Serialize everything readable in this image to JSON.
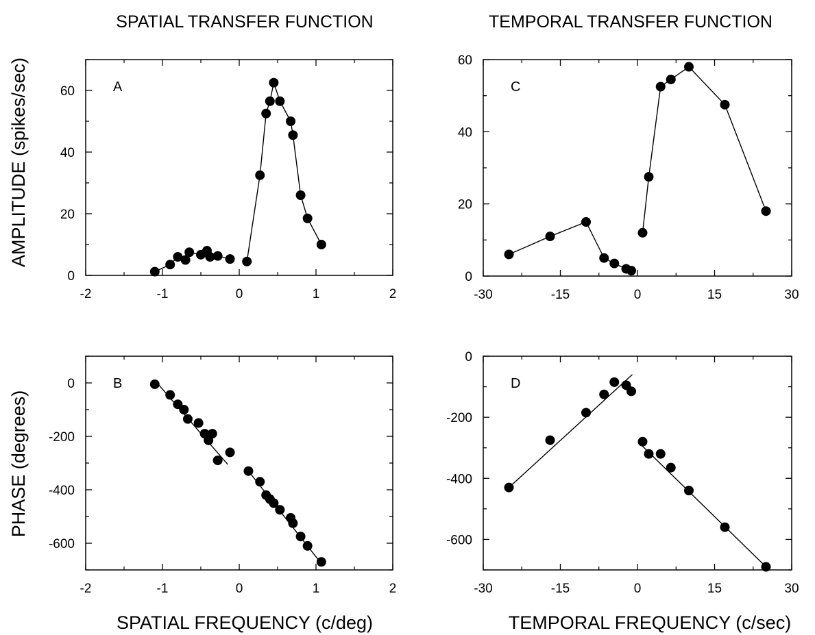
{
  "titles": {
    "spatial": "SPATIAL TRANSFER FUNCTION",
    "temporal": "TEMPORAL TRANSFER FUNCTION"
  },
  "axis_labels": {
    "amplitude": "AMPLITUDE (spikes/sec)",
    "phase": "PHASE (degrees)",
    "spatial_frequency": "SPATIAL FREQUENCY (c/deg)",
    "temporal_frequency": "TEMPORAL FREQUENCY (c/sec)"
  },
  "chart_data": [
    {
      "panel": "A",
      "type": "line",
      "title": "SPATIAL TRANSFER FUNCTION",
      "xlabel": "",
      "ylabel": "AMPLITUDE (spikes/sec)",
      "xlim": [
        -2,
        2
      ],
      "ylim": [
        0,
        70
      ],
      "xticks": [
        -2,
        -1,
        0,
        1,
        2
      ],
      "yticks": [
        0,
        20,
        40,
        60
      ],
      "series": [
        {
          "x": [
            -1.1,
            -0.9,
            -0.8,
            -0.7,
            -0.65,
            -0.5,
            -0.42,
            -0.38,
            -0.28,
            -0.12
          ],
          "y": [
            1.2,
            3.5,
            6.0,
            5.0,
            7.5,
            6.7,
            8.0,
            6.0,
            6.3,
            5.3
          ]
        },
        {
          "x": [
            0.1,
            0.27,
            0.35,
            0.4,
            0.45,
            0.53,
            0.67,
            0.7,
            0.8,
            0.89,
            1.07
          ],
          "y": [
            4.5,
            32.5,
            52.5,
            56.5,
            62.5,
            56.5,
            50.0,
            45.5,
            26.0,
            18.5,
            10.0
          ]
        }
      ]
    },
    {
      "panel": "B",
      "type": "scatter",
      "title": "",
      "xlabel": "SPATIAL FREQUENCY (c/deg)",
      "ylabel": "PHASE (degrees)",
      "xlim": [
        -2,
        2
      ],
      "ylim": [
        -700,
        100
      ],
      "xticks": [
        -2,
        -1,
        0,
        1,
        2
      ],
      "yticks": [
        0,
        -200,
        -400,
        -600
      ],
      "points": {
        "x": [
          -1.1,
          -0.9,
          -0.8,
          -0.72,
          -0.67,
          -0.53,
          -0.45,
          -0.4,
          -0.35,
          -0.28,
          -0.12,
          0.12,
          0.27,
          0.35,
          0.4,
          0.45,
          0.53,
          0.67,
          0.7,
          0.8,
          0.89,
          1.07
        ],
        "y": [
          -5,
          -45,
          -80,
          -100,
          -135,
          -150,
          -190,
          -215,
          -190,
          -290,
          -260,
          -330,
          -370,
          -420,
          -435,
          -450,
          -475,
          -505,
          -525,
          -575,
          -610,
          -670
        ]
      },
      "fit_lines": [
        {
          "x": [
            -1.1,
            -0.15
          ],
          "y": [
            10,
            -305
          ]
        },
        {
          "x": [
            0.12,
            1.08
          ],
          "y": [
            -330,
            -680
          ]
        }
      ]
    },
    {
      "panel": "C",
      "type": "line",
      "title": "TEMPORAL TRANSFER FUNCTION",
      "xlabel": "",
      "ylabel": "",
      "xlim": [
        -30,
        30
      ],
      "ylim": [
        0,
        60
      ],
      "xticks": [
        -30,
        -15,
        0,
        15,
        30
      ],
      "yticks": [
        0,
        20,
        40,
        60
      ],
      "series": [
        {
          "x": [
            -25,
            -17,
            -10,
            -6.5,
            -4.5,
            -2.2,
            -1.2
          ],
          "y": [
            6.0,
            11.0,
            15.0,
            5.0,
            3.5,
            2.0,
            1.5
          ]
        },
        {
          "x": [
            1.0,
            2.2,
            4.5,
            6.5,
            10,
            17,
            25
          ],
          "y": [
            12.0,
            27.5,
            52.5,
            54.5,
            58.0,
            47.5,
            18.0
          ]
        }
      ]
    },
    {
      "panel": "D",
      "type": "scatter",
      "title": "",
      "xlabel": "TEMPORAL FREQUENCY (c/sec)",
      "ylabel": "",
      "xlim": [
        -30,
        30
      ],
      "ylim": [
        -700,
        0
      ],
      "xticks": [
        -30,
        -15,
        0,
        15,
        30
      ],
      "yticks": [
        0,
        -200,
        -400,
        -600
      ],
      "points": {
        "x": [
          -25,
          -17,
          -10,
          -6.5,
          -4.5,
          -2.2,
          -1.2,
          1.0,
          2.2,
          4.5,
          6.5,
          10,
          17,
          25
        ],
        "y": [
          -430,
          -275,
          -185,
          -125,
          -85,
          -95,
          -115,
          -280,
          -320,
          -320,
          -365,
          -440,
          -560,
          -690
        ]
      },
      "fit_lines": [
        {
          "x": [
            -25,
            -1.0
          ],
          "y": [
            -430,
            -60
          ]
        },
        {
          "x": [
            1.0,
            25
          ],
          "y": [
            -295,
            -690
          ]
        }
      ]
    }
  ]
}
